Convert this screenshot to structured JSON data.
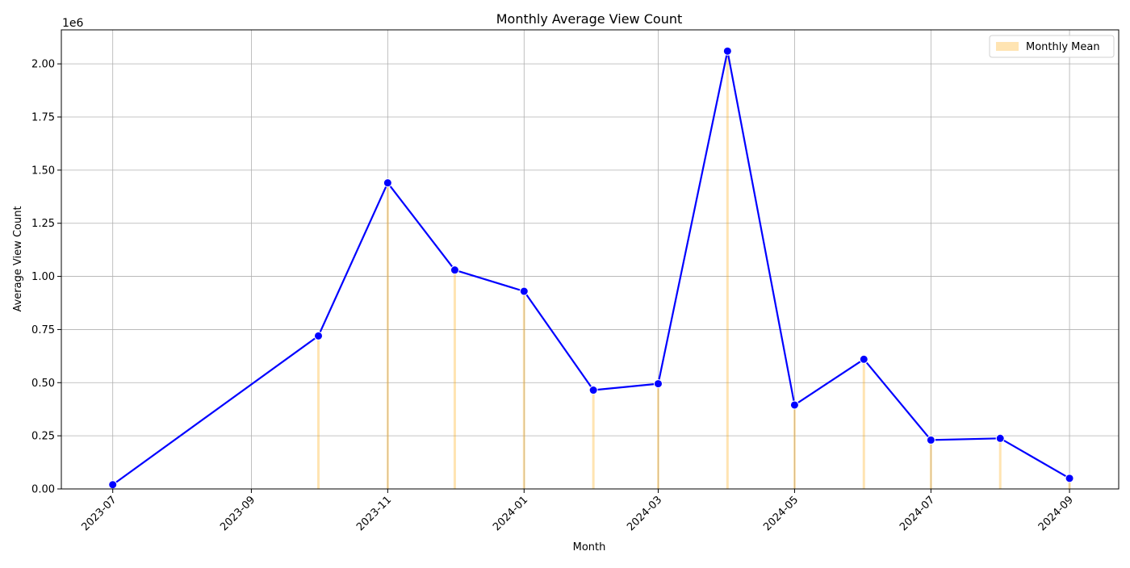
{
  "chart_data": {
    "type": "line",
    "title": "Monthly Average View Count",
    "xlabel": "Month",
    "ylabel": "Average View Count",
    "y_offset_label": "1e6",
    "y_scale_factor": 1000000,
    "xlim": [
      "2023-06-08",
      "2024-09-23"
    ],
    "ylim": [
      0,
      2160000
    ],
    "x_ticks": [
      "2023-07-01",
      "2023-09-01",
      "2023-11-01",
      "2024-01-01",
      "2024-03-01",
      "2024-05-01",
      "2024-07-01",
      "2024-09-01"
    ],
    "x_tick_labels": [
      "2023-07",
      "2023-09",
      "2023-11",
      "2024-01",
      "2024-03",
      "2024-05",
      "2024-07",
      "2024-09"
    ],
    "y_ticks": [
      0,
      250000,
      500000,
      750000,
      1000000,
      1250000,
      1500000,
      1750000,
      2000000
    ],
    "y_tick_labels": [
      "0.00",
      "0.25",
      "0.50",
      "0.75",
      "1.00",
      "1.25",
      "1.50",
      "1.75",
      "2.00"
    ],
    "grid": true,
    "legend_position": "top-right",
    "series": [
      {
        "name": "",
        "kind": "line",
        "color": "#0000ff",
        "x": [
          "2023-07-01",
          "2023-10-01",
          "2023-11-01",
          "2023-12-01",
          "2024-01-01",
          "2024-02-01",
          "2024-03-01",
          "2024-04-01",
          "2024-05-01",
          "2024-06-01",
          "2024-07-01",
          "2024-08-01",
          "2024-09-01"
        ],
        "y": [
          20000,
          720000,
          1440000,
          1030000,
          930000,
          465000,
          495000,
          2060000,
          395000,
          610000,
          230000,
          238000,
          50000
        ]
      },
      {
        "name": "Monthly Mean",
        "kind": "bar",
        "color": "#ffa500",
        "opacity": 0.3,
        "x": [
          "2023-07-01",
          "2023-10-01",
          "2023-11-01",
          "2023-12-01",
          "2024-01-01",
          "2024-02-01",
          "2024-03-01",
          "2024-04-01",
          "2024-05-01",
          "2024-06-01",
          "2024-07-01",
          "2024-08-01",
          "2024-09-01"
        ],
        "y": [
          20000,
          720000,
          1440000,
          1030000,
          930000,
          465000,
          495000,
          2060000,
          395000,
          610000,
          230000,
          238000,
          50000
        ]
      }
    ]
  }
}
